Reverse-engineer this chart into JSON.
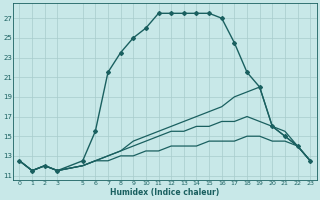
{
  "xlabel": "Humidex (Indice chaleur)",
  "background_color": "#c8e8e8",
  "grid_color": "#a8cccc",
  "line_color": "#1a6060",
  "xlim": [
    -0.5,
    23.5
  ],
  "ylim": [
    10.5,
    28.5
  ],
  "xticks": [
    0,
    1,
    2,
    3,
    5,
    6,
    7,
    8,
    9,
    10,
    11,
    12,
    13,
    14,
    15,
    16,
    17,
    18,
    19,
    20,
    21,
    22,
    23
  ],
  "yticks": [
    11,
    13,
    15,
    17,
    19,
    21,
    23,
    25,
    27
  ],
  "lines": [
    {
      "x": [
        0,
        1,
        2,
        3,
        5,
        6,
        7,
        8,
        9,
        10,
        11,
        12,
        13,
        14,
        15,
        16,
        17,
        18,
        19,
        20,
        21,
        22,
        23
      ],
      "y": [
        12.5,
        11.5,
        12.0,
        11.5,
        12.5,
        15.5,
        21.5,
        23.5,
        25.0,
        26.0,
        27.5,
        27.5,
        27.5,
        27.5,
        27.5,
        27.0,
        24.5,
        21.5,
        20.0,
        16.0,
        15.0,
        14.0,
        12.5
      ],
      "marker": "D",
      "lw": 1.0
    },
    {
      "x": [
        0,
        1,
        2,
        3,
        5,
        6,
        7,
        8,
        9,
        10,
        11,
        12,
        13,
        14,
        15,
        16,
        17,
        18,
        19,
        20,
        21,
        22,
        23
      ],
      "y": [
        12.5,
        11.5,
        12.0,
        11.5,
        12.0,
        12.5,
        13.0,
        13.5,
        14.5,
        15.0,
        15.5,
        16.0,
        16.5,
        17.0,
        17.5,
        18.0,
        19.0,
        19.5,
        20.0,
        16.0,
        15.0,
        14.0,
        12.5
      ],
      "marker": null,
      "lw": 0.9
    },
    {
      "x": [
        0,
        1,
        2,
        3,
        5,
        6,
        7,
        8,
        9,
        10,
        11,
        12,
        13,
        14,
        15,
        16,
        17,
        18,
        19,
        20,
        21,
        22,
        23
      ],
      "y": [
        12.5,
        11.5,
        12.0,
        11.5,
        12.0,
        12.5,
        13.0,
        13.5,
        14.0,
        14.5,
        15.0,
        15.5,
        15.5,
        16.0,
        16.0,
        16.5,
        16.5,
        17.0,
        16.5,
        16.0,
        15.5,
        14.0,
        12.5
      ],
      "marker": null,
      "lw": 0.9
    },
    {
      "x": [
        0,
        1,
        2,
        3,
        5,
        6,
        7,
        8,
        9,
        10,
        11,
        12,
        13,
        14,
        15,
        16,
        17,
        18,
        19,
        20,
        21,
        22,
        23
      ],
      "y": [
        12.5,
        11.5,
        12.0,
        11.5,
        12.0,
        12.5,
        12.5,
        13.0,
        13.0,
        13.5,
        13.5,
        14.0,
        14.0,
        14.0,
        14.5,
        14.5,
        14.5,
        15.0,
        15.0,
        14.5,
        14.5,
        14.0,
        12.5
      ],
      "marker": null,
      "lw": 0.9
    }
  ]
}
